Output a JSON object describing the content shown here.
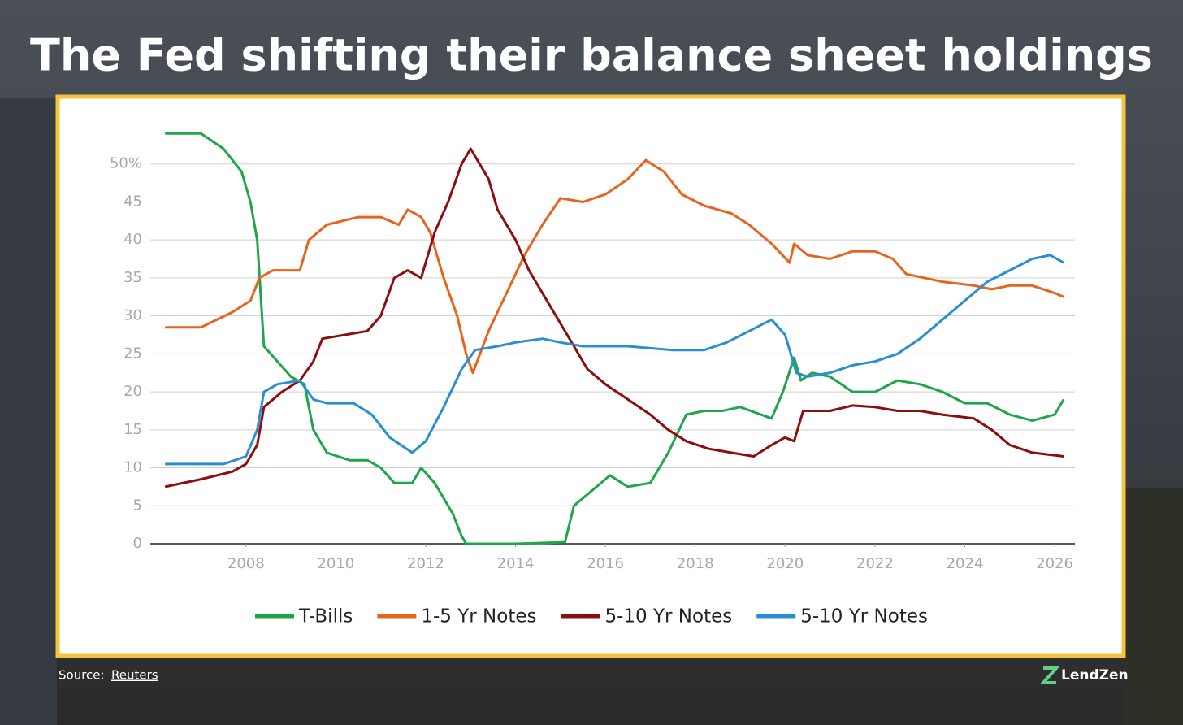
{
  "chart_data": {
    "type": "line",
    "title": "The Fed shifting their balance sheet holdings",
    "source_label": "Source:",
    "source_name": "Reuters",
    "brand": "LendZen",
    "xlim": [
      2005.87,
      2026.45
    ],
    "xticks": [
      2008,
      2010,
      2012,
      2014,
      2016,
      2018,
      2020,
      2022,
      2024,
      2026
    ],
    "ylim": [
      0,
      55
    ],
    "yticks": [
      0,
      5,
      10,
      15,
      20,
      25,
      30,
      35,
      40,
      45,
      {
        "value": 50,
        "label": "50%"
      }
    ],
    "grid": true,
    "legend": "bottom",
    "series": [
      {
        "name": "T-Bills",
        "color": "#1fa64a",
        "x": [
          2006.2,
          2007,
          2007.5,
          2007.9,
          2008.1,
          2008.25,
          2008.4,
          2008.7,
          2009,
          2009.3,
          2009.5,
          2009.8,
          2010.3,
          2010.7,
          2011,
          2011.3,
          2011.7,
          2011.9,
          2012.2,
          2012.6,
          2012.8,
          2012.9,
          2014,
          2015.1,
          2015.3,
          2015.7,
          2016.1,
          2016.5,
          2017,
          2017.4,
          2017.8,
          2018.2,
          2018.6,
          2019,
          2019.7,
          2019.95,
          2020.2,
          2020.35,
          2020.6,
          2021,
          2021.5,
          2022,
          2022.5,
          2023,
          2023.5,
          2024,
          2024.5,
          2025,
          2025.5,
          2026,
          2026.2
        ],
        "values": [
          54,
          54,
          52,
          49,
          45,
          40,
          26,
          24,
          22,
          21,
          15,
          12,
          11,
          11,
          10,
          8,
          8,
          10,
          8,
          4,
          1,
          0,
          0,
          0.2,
          5,
          7,
          9,
          7.5,
          8,
          12,
          17,
          17.5,
          17.5,
          18,
          16.5,
          20,
          24.5,
          21.5,
          22.5,
          22,
          20,
          20,
          21.5,
          21,
          20,
          18.5,
          18.5,
          17,
          16.2,
          17,
          19
        ]
      },
      {
        "name": "1-5 Yr Notes",
        "color": "#e8641e",
        "x": [
          2006.2,
          2007,
          2007.7,
          2008.1,
          2008.3,
          2008.6,
          2009.2,
          2009.4,
          2009.8,
          2010.5,
          2011,
          2011.4,
          2011.6,
          2011.9,
          2012.1,
          2012.4,
          2012.7,
          2012.9,
          2013.05,
          2013.4,
          2013.8,
          2014.2,
          2014.6,
          2015,
          2015.5,
          2016,
          2016.5,
          2016.9,
          2017.3,
          2017.7,
          2018.2,
          2018.8,
          2019.2,
          2019.7,
          2020.1,
          2020.2,
          2020.5,
          2021,
          2021.5,
          2022,
          2022.4,
          2022.7,
          2023.5,
          2024.2,
          2024.6,
          2025,
          2025.5,
          2026,
          2026.2
        ],
        "values": [
          28.5,
          28.5,
          30.5,
          32,
          35,
          36,
          36,
          40,
          42,
          43,
          43,
          42,
          44,
          43,
          41,
          35,
          30,
          25,
          22.5,
          28,
          33,
          38,
          42,
          45.5,
          45,
          46,
          48,
          50.5,
          49,
          46,
          44.5,
          43.5,
          42,
          39.5,
          37,
          39.5,
          38,
          37.5,
          38.5,
          38.5,
          37.5,
          35.5,
          34.5,
          34,
          33.5,
          34,
          34,
          33,
          32.5
        ]
      },
      {
        "name": "5-10 Yr Notes",
        "color": "#8b0f0f",
        "x": [
          2006.2,
          2007,
          2007.7,
          2008,
          2008.25,
          2008.4,
          2008.8,
          2009.2,
          2009.5,
          2009.7,
          2010.2,
          2010.7,
          2011,
          2011.3,
          2011.6,
          2011.9,
          2012.2,
          2012.5,
          2012.8,
          2013,
          2013.4,
          2013.6,
          2014,
          2014.3,
          2014.6,
          2014.9,
          2015.3,
          2015.6,
          2016,
          2016.5,
          2017,
          2017.4,
          2017.8,
          2018.3,
          2018.8,
          2019.3,
          2019.7,
          2020,
          2020.2,
          2020.4,
          2021,
          2021.5,
          2022,
          2022.5,
          2023,
          2023.5,
          2024.2,
          2024.6,
          2025,
          2025.5,
          2026.2
        ],
        "values": [
          7.5,
          8.5,
          9.5,
          10.5,
          13,
          18,
          20,
          21.5,
          24,
          27,
          27.5,
          28,
          30,
          35,
          36,
          35,
          41,
          45,
          50,
          52,
          48,
          44,
          40,
          36,
          33,
          30,
          26,
          23,
          21,
          19,
          17,
          15,
          13.5,
          12.5,
          12,
          11.5,
          13,
          14,
          13.5,
          17.5,
          17.5,
          18.2,
          18,
          17.5,
          17.5,
          17,
          16.5,
          15,
          13,
          12,
          11.5
        ]
      },
      {
        "name": "5-10 Yr Notes",
        "color": "#2a8fd0",
        "x": [
          2006.2,
          2007.5,
          2008,
          2008.25,
          2008.4,
          2008.7,
          2009.2,
          2009.5,
          2009.8,
          2010.4,
          2010.8,
          2011.2,
          2011.7,
          2012,
          2012.4,
          2012.8,
          2013.1,
          2013.6,
          2014,
          2014.6,
          2015,
          2015.5,
          2016.5,
          2017.5,
          2018.2,
          2018.7,
          2019.2,
          2019.7,
          2020,
          2020.25,
          2020.5,
          2021,
          2021.5,
          2022,
          2022.5,
          2023,
          2023.5,
          2024,
          2024.5,
          2025,
          2025.5,
          2025.9,
          2026.2
        ],
        "values": [
          10.5,
          10.5,
          11.5,
          15,
          20,
          21,
          21.5,
          19,
          18.5,
          18.5,
          17,
          14,
          12,
          13.5,
          18,
          23,
          25.5,
          26,
          26.5,
          27,
          26.5,
          26,
          26,
          25.5,
          25.5,
          26.5,
          28,
          29.5,
          27.5,
          22.5,
          22,
          22.5,
          23.5,
          24,
          25,
          27,
          29.5,
          32,
          34.5,
          36,
          37.5,
          38,
          37
        ]
      }
    ]
  }
}
